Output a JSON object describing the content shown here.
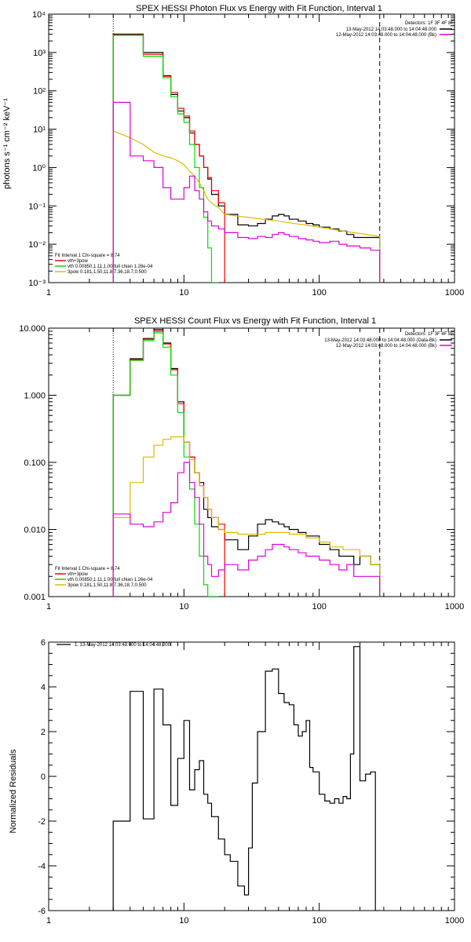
{
  "colors": {
    "data": "#000000",
    "total": "#ff0000",
    "vth": "#00dd00",
    "pow": "#ddbb00",
    "bkg": "#dd00dd",
    "boundary_low": "#ff6600"
  },
  "chart_data": [
    {
      "type": "line",
      "title": "SPEX HESSI Photon Flux vs Energy with Fit Function, Interval 1",
      "ylabel": "photons s⁻¹ cm⁻² keV⁻¹",
      "xlabel": "",
      "xscale": "log",
      "yscale": "log",
      "xlim": [
        1,
        1000
      ],
      "ylim": [
        0.001,
        10000
      ],
      "xticks": [
        "1",
        "10",
        "100",
        "1000"
      ],
      "yticks": [
        "10⁻³",
        "10⁻²",
        "10⁻¹",
        "10⁰",
        "10¹",
        "10²",
        "10³",
        "10⁴"
      ],
      "detectors": "Detectors: 1F 3F 4F 8F",
      "legend_top": [
        "13-May-2012 14:03:48.000 to 14:04:48.000",
        "12-May-2012 14:03:48.000 to 14:04:48.000 (Bk)"
      ],
      "legend_bottom": [
        "Fit Interval 1    Chi-square = 8.74",
        "vth+3pow",
        "vth 0.00850,1.11,1.00  full chian 1.26e-04",
        "3pow 0.181,1.50,11.8,7.36,18.7,0.500"
      ],
      "vlines": [
        3,
        280
      ],
      "series": [
        {
          "name": "13-May-2012 14:03:48.000 to 14:04:48.000",
          "edges": [
            3,
            4,
            5,
            6,
            7,
            8,
            9,
            10,
            11,
            12,
            13,
            14,
            15,
            16,
            18,
            20,
            25,
            30,
            35,
            40,
            45,
            50,
            55,
            60,
            70,
            80,
            90,
            100,
            120,
            140,
            160,
            180,
            200,
            240,
            280
          ],
          "values": [
            3000,
            3000,
            1000,
            1000,
            250,
            80,
            30,
            20,
            8,
            4,
            2,
            1,
            0.5,
            0.2,
            0.1,
            0.06,
            0.032,
            0.03,
            0.035,
            0.045,
            0.055,
            0.06,
            0.055,
            0.045,
            0.04,
            0.035,
            0.032,
            0.028,
            0.025,
            0.022,
            0.018,
            0.015,
            0.015,
            0.015
          ]
        },
        {
          "name": "vth+3pow",
          "edges": [
            3,
            4,
            5,
            6,
            7,
            8,
            9,
            10,
            11,
            12,
            13,
            14,
            15,
            16,
            18,
            20
          ],
          "values": [
            2900,
            2900,
            900,
            900,
            240,
            90,
            35,
            22,
            9,
            4,
            2,
            1,
            0.55,
            0.25,
            0.12
          ]
        },
        {
          "name": "vth 0.00850,1.11,1.00  full chian 1.26e-04",
          "edges": [
            3,
            4,
            5,
            6,
            7,
            8,
            9,
            10,
            11,
            12,
            13,
            14,
            15,
            16,
            18
          ],
          "values": [
            2800,
            2800,
            800,
            800,
            220,
            70,
            25,
            15,
            4,
            1,
            0.3,
            0.05,
            0.008,
            0.001
          ]
        },
        {
          "name": "3pow 0.181,1.50,11.8,7.36,18.7,0.500",
          "points": [
            [
              3,
              9
            ],
            [
              4,
              6
            ],
            [
              5,
              4
            ],
            [
              6,
              2.5
            ],
            [
              7,
              2
            ],
            [
              8,
              1.8
            ],
            [
              9,
              1.5
            ],
            [
              10,
              1.2
            ],
            [
              11,
              0.8
            ],
            [
              12,
              0.6
            ],
            [
              13,
              0.4
            ],
            [
              14,
              0.25
            ],
            [
              15,
              0.15
            ],
            [
              16,
              0.12
            ],
            [
              18,
              0.09
            ],
            [
              20,
              0.06
            ],
            [
              30,
              0.05
            ],
            [
              50,
              0.04
            ],
            [
              100,
              0.028
            ],
            [
              150,
              0.022
            ],
            [
              200,
              0.019
            ],
            [
              280,
              0.016
            ]
          ]
        },
        {
          "name": "12-May-2012 14:03:48.000 to 14:04:48.000 (Bk)",
          "edges": [
            3,
            4,
            5,
            6,
            7,
            8,
            9,
            10,
            11,
            12,
            13,
            14,
            15,
            16,
            18,
            20,
            25,
            30,
            35,
            40,
            45,
            50,
            55,
            60,
            70,
            80,
            90,
            100,
            120,
            140,
            160,
            180,
            200,
            240,
            280
          ],
          "values": [
            50,
            2,
            1.5,
            1,
            0.3,
            0.15,
            0.15,
            0.3,
            0.6,
            0.25,
            0.15,
            0.07,
            0.04,
            0.03,
            0.025,
            0.02,
            0.015,
            0.014,
            0.016,
            0.015,
            0.018,
            0.02,
            0.018,
            0.016,
            0.014,
            0.013,
            0.012,
            0.011,
            0.012,
            0.01,
            0.009,
            0.009,
            0.008,
            0.007
          ]
        }
      ]
    },
    {
      "type": "line",
      "title": "SPEX HESSI Count Flux vs Energy with Fit Function, Interval 1",
      "ylabel": "",
      "xlabel": "",
      "xscale": "log",
      "yscale": "log",
      "xlim": [
        1,
        1000
      ],
      "ylim": [
        0.001,
        10
      ],
      "xticks": [
        "1",
        "10",
        "100",
        "1000"
      ],
      "yticks": [
        "0.001",
        "0.010",
        "0.100",
        "1.000",
        "10.000"
      ],
      "detectors": "Detectors: 1F 3F 4F 8F",
      "legend_top": [
        "13-May-2012 14:03:48.000 to 14:04:48.000 (Data-Bk)",
        "12-May-2012 14:03:48.000 to 14:04:48.000 (Bk)"
      ],
      "legend_bottom": [
        "Fit Interval 1    Chi-square = 8.74",
        "vth+3pow",
        "vth 0.00850,1.11,1.00  full chian 1.26e-04",
        "3pow 0.181,1.50,11.8,7.36,18.7,0.500"
      ],
      "vlines": [
        3,
        280
      ],
      "series": [
        {
          "name": "13-May-2012 14:03:48.000 to 14:04:48.000 (Data-Bk)",
          "edges": [
            3,
            4,
            5,
            6,
            7,
            8,
            9,
            10,
            11,
            12,
            13,
            14,
            15,
            16,
            18,
            20,
            25,
            30,
            35,
            40,
            45,
            50,
            55,
            60,
            70,
            80,
            90,
            100,
            120,
            140,
            160,
            180,
            200,
            240,
            280
          ],
          "values": [
            1.0,
            3.5,
            7.0,
            9.5,
            6.0,
            2.5,
            0.8,
            0.2,
            0.12,
            0.07,
            0.05,
            0.02,
            0.015,
            0.011,
            0.01,
            0.007,
            0.005,
            0.008,
            0.012,
            0.014,
            0.013,
            0.012,
            0.011,
            0.01,
            0.009,
            0.008,
            0.008,
            0.006,
            0.005,
            0.004,
            0.004,
            0.003,
            0.004,
            0.003
          ]
        },
        {
          "name": "vth+3pow",
          "edges": [
            3,
            4,
            5,
            6,
            7,
            8,
            9,
            10,
            11,
            12,
            13,
            14,
            15,
            16,
            18,
            20
          ],
          "values": [
            1.0,
            3.4,
            6.8,
            9.0,
            5.8,
            2.4,
            0.75,
            0.2,
            0.12,
            0.07,
            0.045,
            0.03,
            0.02,
            0.015,
            0.012
          ]
        },
        {
          "name": "vth 0.00850,1.11,1.00  full chian 1.26e-04",
          "edges": [
            3,
            4,
            5,
            6,
            7,
            8,
            9,
            10,
            11,
            12,
            13,
            14,
            15,
            16,
            18
          ],
          "values": [
            1.0,
            3.3,
            6.5,
            8.5,
            5.2,
            2.0,
            0.55,
            0.12,
            0.04,
            0.012,
            0.004,
            0.0015,
            0.001,
            0.001
          ]
        },
        {
          "name": "3pow 0.181,1.50,11.8,7.36,18.7,0.500",
          "edges": [
            3,
            4,
            5,
            6,
            7,
            8,
            9,
            10,
            11,
            12,
            13,
            14,
            15,
            16,
            18,
            20,
            25,
            30,
            40,
            50,
            60,
            80,
            100,
            120,
            150,
            200,
            240,
            280
          ],
          "values": [
            0.015,
            0.05,
            0.12,
            0.18,
            0.22,
            0.24,
            0.24,
            0.2,
            0.11,
            0.07,
            0.045,
            0.03,
            0.02,
            0.015,
            0.01,
            0.009,
            0.0085,
            0.0085,
            0.009,
            0.009,
            0.0085,
            0.0075,
            0.0065,
            0.0055,
            0.005,
            0.004,
            0.003
          ]
        },
        {
          "name": "12-May-2012 14:03:48.000 to 14:04:48.000 (Bk)",
          "edges": [
            3,
            4,
            5,
            6,
            7,
            8,
            9,
            10,
            11,
            12,
            13,
            14,
            15,
            16,
            18,
            20,
            25,
            30,
            35,
            40,
            45,
            50,
            55,
            60,
            70,
            80,
            90,
            100,
            120,
            140,
            160,
            180,
            200,
            240,
            280
          ],
          "values": [
            0.017,
            0.012,
            0.011,
            0.013,
            0.018,
            0.025,
            0.07,
            0.1,
            0.05,
            0.03,
            0.012,
            0.004,
            0.003,
            0.002,
            0.0025,
            0.003,
            0.0025,
            0.0035,
            0.004,
            0.005,
            0.006,
            0.006,
            0.0055,
            0.005,
            0.0045,
            0.004,
            0.004,
            0.0035,
            0.003,
            0.0025,
            0.003,
            0.002,
            0.002,
            0.002
          ]
        }
      ]
    },
    {
      "type": "line",
      "title": "",
      "ylabel": "Normalized Residuals",
      "xlabel": "",
      "xscale": "log",
      "yscale": "linear",
      "xlim": [
        1,
        1000
      ],
      "ylim": [
        -6,
        6
      ],
      "xticks": [
        "1",
        "10",
        "100",
        "1000"
      ],
      "yticks": [
        "-6",
        "-4",
        "-2",
        "0",
        "2",
        "4",
        "6"
      ],
      "legend": "1. 13-May-2012 14:03:48.000 to 14:04:48.000",
      "series": [
        {
          "name": "1. 13-May-2012 14:03:48.000 to 14:04:48.000",
          "edges": [
            3,
            4,
            5,
            6,
            7,
            8,
            9,
            10,
            11,
            12,
            13,
            14,
            15,
            16,
            18,
            20,
            22,
            25,
            28,
            30,
            32,
            35,
            40,
            45,
            50,
            55,
            60,
            65,
            70,
            75,
            80,
            85,
            90,
            100,
            110,
            120,
            130,
            140,
            150,
            160,
            170,
            180,
            200,
            220,
            240,
            260,
            280
          ],
          "values": [
            -2,
            3.8,
            -1.9,
            3.9,
            2.3,
            -1.3,
            0.8,
            2.5,
            -0.6,
            0.3,
            0.7,
            -0.8,
            -1.2,
            -1.8,
            -2.8,
            -3.5,
            -3.8,
            -4.9,
            -5.3,
            -3.2,
            -0.3,
            2.0,
            4.7,
            4.8,
            3.7,
            3.3,
            3.2,
            2.3,
            1.8,
            2.0,
            2.5,
            0.4,
            0.2,
            -0.8,
            -1.1,
            -1.2,
            -1.0,
            -1.2,
            -0.9,
            -1.0,
            1.0,
            5.8,
            -0.2,
            0.1,
            0.2,
            -6
          ]
        }
      ]
    }
  ]
}
